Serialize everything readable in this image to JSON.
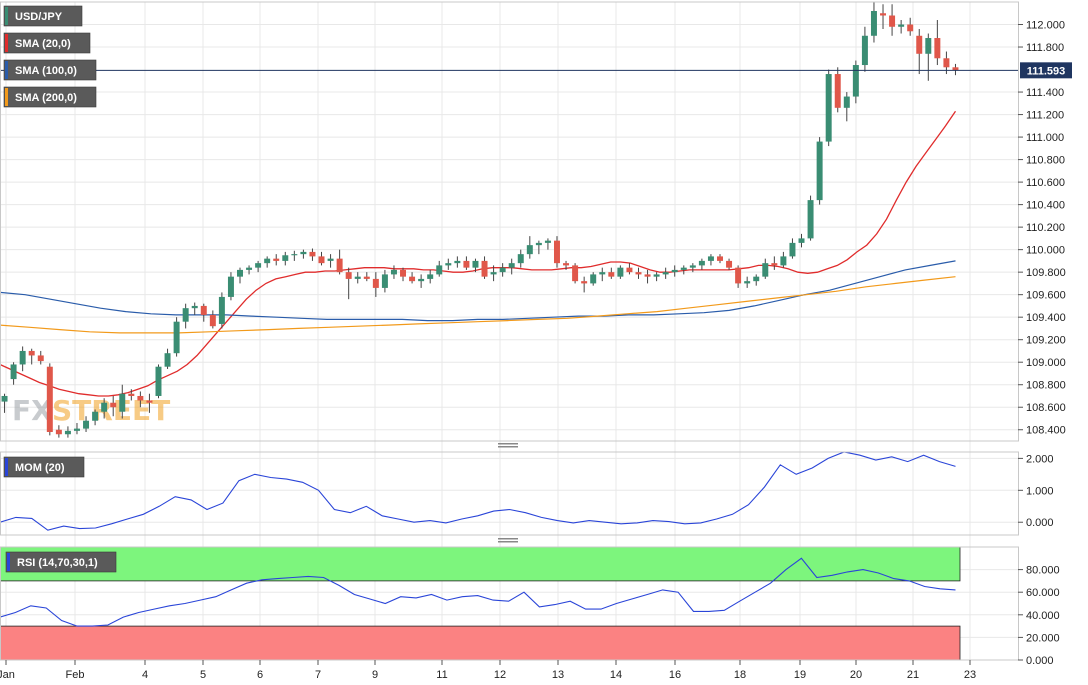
{
  "symbol": "USD/JPY",
  "current_price": "111.593",
  "watermark": {
    "left": "FX",
    "right": "STREET"
  },
  "colors": {
    "up_candle": "#3a8d73",
    "down_candle": "#e0574a",
    "sma20": "#e02c2c",
    "sma100": "#2a5caa",
    "sma200": "#f29a1b",
    "mom": "#2a45d8",
    "rsi": "#2a45d8",
    "rsi_overbought_zone": "#7df57d",
    "rsi_oversold_zone": "#fb8282",
    "price_line": "#1f3560",
    "grid": "#e8e8e8",
    "label_bg": "#5a5a5a"
  },
  "indicators": {
    "sma20_label": "SMA (20,0)",
    "sma100_label": "SMA (100,0)",
    "sma200_label": "SMA (200,0)",
    "mom_label": "MOM (20)",
    "rsi_label": "RSI (14,70,30,1)"
  },
  "chart_data": [
    {
      "type": "candlestick",
      "title": "USD/JPY",
      "ylim": [
        108.3,
        112.2
      ],
      "y_ticks": [
        "108.400",
        "108.600",
        "108.800",
        "109.000",
        "109.200",
        "109.400",
        "109.600",
        "109.800",
        "110.000",
        "110.200",
        "110.400",
        "110.600",
        "110.800",
        "111.000",
        "111.200",
        "111.400",
        "111.800",
        "112.000"
      ],
      "x_ticks": [
        "Jan",
        "Feb",
        "4",
        "5",
        "6",
        "7",
        "9",
        "11",
        "12",
        "13",
        "14",
        "16",
        "18",
        "19",
        "20",
        "21",
        "23"
      ],
      "candles": [
        {
          "o": 108.65,
          "h": 108.72,
          "l": 108.55,
          "c": 108.7
        },
        {
          "o": 108.85,
          "h": 109.0,
          "l": 108.8,
          "c": 108.98
        },
        {
          "o": 108.98,
          "h": 109.14,
          "l": 108.92,
          "c": 109.1
        },
        {
          "o": 109.1,
          "h": 109.12,
          "l": 108.98,
          "c": 109.06
        },
        {
          "o": 109.06,
          "h": 109.1,
          "l": 108.98,
          "c": 109.01
        },
        {
          "o": 108.96,
          "h": 108.99,
          "l": 108.35,
          "c": 108.38
        },
        {
          "o": 108.4,
          "h": 108.44,
          "l": 108.33,
          "c": 108.36
        },
        {
          "o": 108.36,
          "h": 108.43,
          "l": 108.33,
          "c": 108.39
        },
        {
          "o": 108.39,
          "h": 108.46,
          "l": 108.36,
          "c": 108.41
        },
        {
          "o": 108.41,
          "h": 108.52,
          "l": 108.38,
          "c": 108.48
        },
        {
          "o": 108.48,
          "h": 108.58,
          "l": 108.44,
          "c": 108.56
        },
        {
          "o": 108.56,
          "h": 108.68,
          "l": 108.5,
          "c": 108.64
        },
        {
          "o": 108.64,
          "h": 108.7,
          "l": 108.52,
          "c": 108.6
        },
        {
          "o": 108.56,
          "h": 108.8,
          "l": 108.5,
          "c": 108.72
        },
        {
          "o": 108.72,
          "h": 108.76,
          "l": 108.66,
          "c": 108.7
        },
        {
          "o": 108.7,
          "h": 108.74,
          "l": 108.6,
          "c": 108.66
        },
        {
          "o": 108.66,
          "h": 108.72,
          "l": 108.55,
          "c": 108.64
        },
        {
          "o": 108.7,
          "h": 108.98,
          "l": 108.68,
          "c": 108.96
        },
        {
          "o": 108.96,
          "h": 109.12,
          "l": 108.94,
          "c": 109.08
        },
        {
          "o": 109.08,
          "h": 109.4,
          "l": 109.05,
          "c": 109.36
        },
        {
          "o": 109.36,
          "h": 109.52,
          "l": 109.3,
          "c": 109.48
        },
        {
          "o": 109.48,
          "h": 109.53,
          "l": 109.42,
          "c": 109.5
        },
        {
          "o": 109.5,
          "h": 109.52,
          "l": 109.36,
          "c": 109.42
        },
        {
          "o": 109.42,
          "h": 109.46,
          "l": 109.3,
          "c": 109.32
        },
        {
          "o": 109.34,
          "h": 109.62,
          "l": 109.3,
          "c": 109.58
        },
        {
          "o": 109.58,
          "h": 109.8,
          "l": 109.55,
          "c": 109.76
        },
        {
          "o": 109.76,
          "h": 109.84,
          "l": 109.7,
          "c": 109.82
        },
        {
          "o": 109.82,
          "h": 109.86,
          "l": 109.78,
          "c": 109.84
        },
        {
          "o": 109.84,
          "h": 109.9,
          "l": 109.8,
          "c": 109.88
        },
        {
          "o": 109.88,
          "h": 109.94,
          "l": 109.84,
          "c": 109.92
        },
        {
          "o": 109.92,
          "h": 109.96,
          "l": 109.86,
          "c": 109.9
        },
        {
          "o": 109.9,
          "h": 109.98,
          "l": 109.86,
          "c": 109.95
        },
        {
          "o": 109.95,
          "h": 109.99,
          "l": 109.9,
          "c": 109.96
        },
        {
          "o": 109.96,
          "h": 110.0,
          "l": 109.92,
          "c": 109.98
        },
        {
          "o": 109.98,
          "h": 110.01,
          "l": 109.9,
          "c": 109.94
        },
        {
          "o": 109.94,
          "h": 109.98,
          "l": 109.86,
          "c": 109.88
        },
        {
          "o": 109.9,
          "h": 109.96,
          "l": 109.84,
          "c": 109.92
        },
        {
          "o": 109.92,
          "h": 110.0,
          "l": 109.78,
          "c": 109.8
        },
        {
          "o": 109.8,
          "h": 109.84,
          "l": 109.56,
          "c": 109.74
        },
        {
          "o": 109.74,
          "h": 109.8,
          "l": 109.7,
          "c": 109.76
        },
        {
          "o": 109.76,
          "h": 109.8,
          "l": 109.72,
          "c": 109.74
        },
        {
          "o": 109.74,
          "h": 109.8,
          "l": 109.58,
          "c": 109.66
        },
        {
          "o": 109.66,
          "h": 109.82,
          "l": 109.62,
          "c": 109.78
        },
        {
          "o": 109.78,
          "h": 109.86,
          "l": 109.74,
          "c": 109.82
        },
        {
          "o": 109.82,
          "h": 109.84,
          "l": 109.72,
          "c": 109.76
        },
        {
          "o": 109.76,
          "h": 109.8,
          "l": 109.7,
          "c": 109.72
        },
        {
          "o": 109.72,
          "h": 109.78,
          "l": 109.66,
          "c": 109.74
        },
        {
          "o": 109.74,
          "h": 109.82,
          "l": 109.7,
          "c": 109.78
        },
        {
          "o": 109.78,
          "h": 109.9,
          "l": 109.76,
          "c": 109.86
        },
        {
          "o": 109.86,
          "h": 109.92,
          "l": 109.82,
          "c": 109.88
        },
        {
          "o": 109.88,
          "h": 109.94,
          "l": 109.84,
          "c": 109.9
        },
        {
          "o": 109.9,
          "h": 109.94,
          "l": 109.82,
          "c": 109.84
        },
        {
          "o": 109.84,
          "h": 109.92,
          "l": 109.8,
          "c": 109.9
        },
        {
          "o": 109.9,
          "h": 109.94,
          "l": 109.74,
          "c": 109.76
        },
        {
          "o": 109.78,
          "h": 109.86,
          "l": 109.72,
          "c": 109.8
        },
        {
          "o": 109.8,
          "h": 109.88,
          "l": 109.76,
          "c": 109.84
        },
        {
          "o": 109.84,
          "h": 109.92,
          "l": 109.78,
          "c": 109.88
        },
        {
          "o": 109.88,
          "h": 110.0,
          "l": 109.84,
          "c": 109.96
        },
        {
          "o": 109.96,
          "h": 110.12,
          "l": 109.92,
          "c": 110.04
        },
        {
          "o": 110.04,
          "h": 110.08,
          "l": 109.96,
          "c": 110.06
        },
        {
          "o": 110.06,
          "h": 110.1,
          "l": 110.0,
          "c": 110.08
        },
        {
          "o": 110.08,
          "h": 110.12,
          "l": 109.84,
          "c": 109.88
        },
        {
          "o": 109.88,
          "h": 109.9,
          "l": 109.82,
          "c": 109.86
        },
        {
          "o": 109.86,
          "h": 109.88,
          "l": 109.7,
          "c": 109.72
        },
        {
          "o": 109.72,
          "h": 109.76,
          "l": 109.62,
          "c": 109.7
        },
        {
          "o": 109.7,
          "h": 109.8,
          "l": 109.68,
          "c": 109.78
        },
        {
          "o": 109.78,
          "h": 109.84,
          "l": 109.72,
          "c": 109.8
        },
        {
          "o": 109.8,
          "h": 109.84,
          "l": 109.74,
          "c": 109.76
        },
        {
          "o": 109.76,
          "h": 109.86,
          "l": 109.74,
          "c": 109.84
        },
        {
          "o": 109.84,
          "h": 109.88,
          "l": 109.78,
          "c": 109.8
        },
        {
          "o": 109.8,
          "h": 109.84,
          "l": 109.74,
          "c": 109.78
        },
        {
          "o": 109.78,
          "h": 109.82,
          "l": 109.7,
          "c": 109.76
        },
        {
          "o": 109.76,
          "h": 109.8,
          "l": 109.72,
          "c": 109.78
        },
        {
          "o": 109.78,
          "h": 109.84,
          "l": 109.74,
          "c": 109.8
        },
        {
          "o": 109.8,
          "h": 109.86,
          "l": 109.76,
          "c": 109.82
        },
        {
          "o": 109.82,
          "h": 109.86,
          "l": 109.78,
          "c": 109.84
        },
        {
          "o": 109.84,
          "h": 109.88,
          "l": 109.8,
          "c": 109.86
        },
        {
          "o": 109.86,
          "h": 109.92,
          "l": 109.82,
          "c": 109.9
        },
        {
          "o": 109.9,
          "h": 109.96,
          "l": 109.86,
          "c": 109.94
        },
        {
          "o": 109.94,
          "h": 109.96,
          "l": 109.88,
          "c": 109.9
        },
        {
          "o": 109.9,
          "h": 109.92,
          "l": 109.82,
          "c": 109.84
        },
        {
          "o": 109.84,
          "h": 109.86,
          "l": 109.66,
          "c": 109.7
        },
        {
          "o": 109.7,
          "h": 109.76,
          "l": 109.66,
          "c": 109.72
        },
        {
          "o": 109.72,
          "h": 109.78,
          "l": 109.68,
          "c": 109.76
        },
        {
          "o": 109.76,
          "h": 109.92,
          "l": 109.74,
          "c": 109.88
        },
        {
          "o": 109.88,
          "h": 109.94,
          "l": 109.82,
          "c": 109.86
        },
        {
          "o": 109.86,
          "h": 109.98,
          "l": 109.84,
          "c": 109.94
        },
        {
          "o": 109.94,
          "h": 110.1,
          "l": 109.92,
          "c": 110.06
        },
        {
          "o": 110.06,
          "h": 110.14,
          "l": 110.02,
          "c": 110.1
        },
        {
          "o": 110.1,
          "h": 110.48,
          "l": 110.08,
          "c": 110.44
        },
        {
          "o": 110.44,
          "h": 111.0,
          "l": 110.4,
          "c": 110.96
        },
        {
          "o": 110.96,
          "h": 111.6,
          "l": 110.92,
          "c": 111.56
        },
        {
          "o": 111.56,
          "h": 111.62,
          "l": 111.22,
          "c": 111.26
        },
        {
          "o": 111.26,
          "h": 111.4,
          "l": 111.14,
          "c": 111.36
        },
        {
          "o": 111.36,
          "h": 111.68,
          "l": 111.3,
          "c": 111.64
        },
        {
          "o": 111.64,
          "h": 111.98,
          "l": 111.58,
          "c": 111.9
        },
        {
          "o": 111.9,
          "h": 112.2,
          "l": 111.84,
          "c": 112.12
        },
        {
          "o": 112.1,
          "h": 112.18,
          "l": 111.96,
          "c": 112.08
        },
        {
          "o": 112.08,
          "h": 112.18,
          "l": 111.9,
          "c": 111.98
        },
        {
          "o": 111.98,
          "h": 112.04,
          "l": 111.92,
          "c": 112.0
        },
        {
          "o": 112.0,
          "h": 112.06,
          "l": 111.9,
          "c": 111.94
        },
        {
          "o": 111.9,
          "h": 111.96,
          "l": 111.56,
          "c": 111.74
        },
        {
          "o": 111.74,
          "h": 111.92,
          "l": 111.5,
          "c": 111.88
        },
        {
          "o": 111.88,
          "h": 112.04,
          "l": 111.64,
          "c": 111.7
        },
        {
          "o": 111.7,
          "h": 111.76,
          "l": 111.56,
          "c": 111.62
        },
        {
          "o": 111.62,
          "h": 111.65,
          "l": 111.55,
          "c": 111.593
        }
      ],
      "series": [
        {
          "name": "SMA (20,0)",
          "values": [
            108.98,
            108.94,
            108.9,
            108.86,
            108.82,
            108.79,
            108.76,
            108.74,
            108.72,
            108.71,
            108.7,
            108.7,
            108.71,
            108.73,
            108.76,
            108.79,
            108.84,
            108.88,
            108.92,
            108.98,
            109.06,
            109.16,
            109.26,
            109.36,
            109.46,
            109.56,
            109.64,
            109.7,
            109.74,
            109.76,
            109.78,
            109.8,
            109.8,
            109.81,
            109.81,
            109.82,
            109.83,
            109.84,
            109.84,
            109.84,
            109.83,
            109.83,
            109.83,
            109.82,
            109.82,
            109.81,
            109.8,
            109.8,
            109.81,
            109.83,
            109.84,
            109.84,
            109.84,
            109.83,
            109.82,
            109.82,
            109.82,
            109.83,
            109.84,
            109.84,
            109.85,
            109.87,
            109.89,
            109.89,
            109.88,
            109.85,
            109.82,
            109.8,
            109.8,
            109.81,
            109.82,
            109.82,
            109.82,
            109.82,
            109.82,
            109.83,
            109.84,
            109.86,
            109.86,
            109.85,
            109.83,
            109.8,
            109.79,
            109.8,
            109.83,
            109.86,
            109.91,
            109.98,
            110.04,
            110.14,
            110.27,
            110.44,
            110.6,
            110.74,
            110.86,
            110.98,
            111.1,
            111.23
          ]
        },
        {
          "name": "SMA (100,0)",
          "values": [
            109.62,
            109.6,
            109.56,
            109.52,
            109.48,
            109.45,
            109.43,
            109.42,
            109.42,
            109.42,
            109.41,
            109.4,
            109.39,
            109.38,
            109.38,
            109.38,
            109.38,
            109.37,
            109.37,
            109.38,
            109.38,
            109.39,
            109.4,
            109.41,
            109.41,
            109.42,
            109.42,
            109.43,
            109.44,
            109.46,
            109.5,
            109.55,
            109.6,
            109.64,
            109.7,
            109.76,
            109.82,
            109.86,
            109.9
          ]
        },
        {
          "name": "SMA (200,0)",
          "values": [
            109.33,
            109.31,
            109.29,
            109.27,
            109.26,
            109.26,
            109.26,
            109.27,
            109.28,
            109.29,
            109.3,
            109.31,
            109.32,
            109.33,
            109.34,
            109.35,
            109.36,
            109.37,
            109.38,
            109.39,
            109.41,
            109.43,
            109.45,
            109.48,
            109.51,
            109.54,
            109.57,
            109.6,
            109.63,
            109.67,
            109.7,
            109.73,
            109.76
          ]
        }
      ]
    },
    {
      "type": "line",
      "title": "MOM (20)",
      "ylim": [
        -0.4,
        2.2
      ],
      "y_ticks": [
        "2.000",
        "1.000",
        "0.000"
      ],
      "series": [
        {
          "name": "MOM (20)",
          "values": [
            0.0,
            0.15,
            0.12,
            -0.25,
            -0.12,
            -0.2,
            -0.18,
            -0.05,
            0.1,
            0.25,
            0.5,
            0.8,
            0.7,
            0.4,
            0.6,
            1.3,
            1.5,
            1.4,
            1.35,
            1.25,
            1.0,
            0.4,
            0.3,
            0.5,
            0.2,
            0.1,
            0.0,
            0.05,
            -0.02,
            0.1,
            0.2,
            0.35,
            0.4,
            0.3,
            0.15,
            0.05,
            -0.02,
            0.05,
            0.0,
            -0.05,
            -0.02,
            0.05,
            0.02,
            -0.05,
            -0.02,
            0.1,
            0.25,
            0.55,
            1.1,
            1.8,
            1.5,
            1.7,
            2.0,
            2.2,
            2.1,
            1.95,
            2.05,
            1.9,
            2.1,
            1.9,
            1.75
          ]
        }
      ]
    },
    {
      "type": "line",
      "title": "RSI (14,70,30,1)",
      "ylim": [
        0,
        100
      ],
      "y_ticks": [
        "80.000",
        "60.000",
        "40.000",
        "20.000",
        "0.000"
      ],
      "x_ticks": [
        "Jan",
        "Feb",
        "4",
        "5",
        "6",
        "7",
        "9",
        "11",
        "12",
        "13",
        "14",
        "16",
        "18",
        "19",
        "20",
        "21",
        "23"
      ],
      "overbought": 70,
      "oversold": 30,
      "series": [
        {
          "name": "RSI (14,70,30,1)",
          "values": [
            38,
            42,
            48,
            46,
            35,
            30,
            30,
            31,
            38,
            42,
            45,
            48,
            50,
            53,
            56,
            62,
            68,
            71,
            72,
            73,
            74,
            73,
            66,
            58,
            54,
            50,
            56,
            55,
            58,
            53,
            56,
            57,
            53,
            52,
            60,
            47,
            49,
            52,
            45,
            45,
            50,
            54,
            58,
            62,
            60,
            43,
            43,
            44,
            52,
            60,
            68,
            80,
            90,
            73,
            75,
            78,
            80,
            77,
            72,
            70,
            65,
            63,
            62
          ]
        }
      ]
    }
  ]
}
